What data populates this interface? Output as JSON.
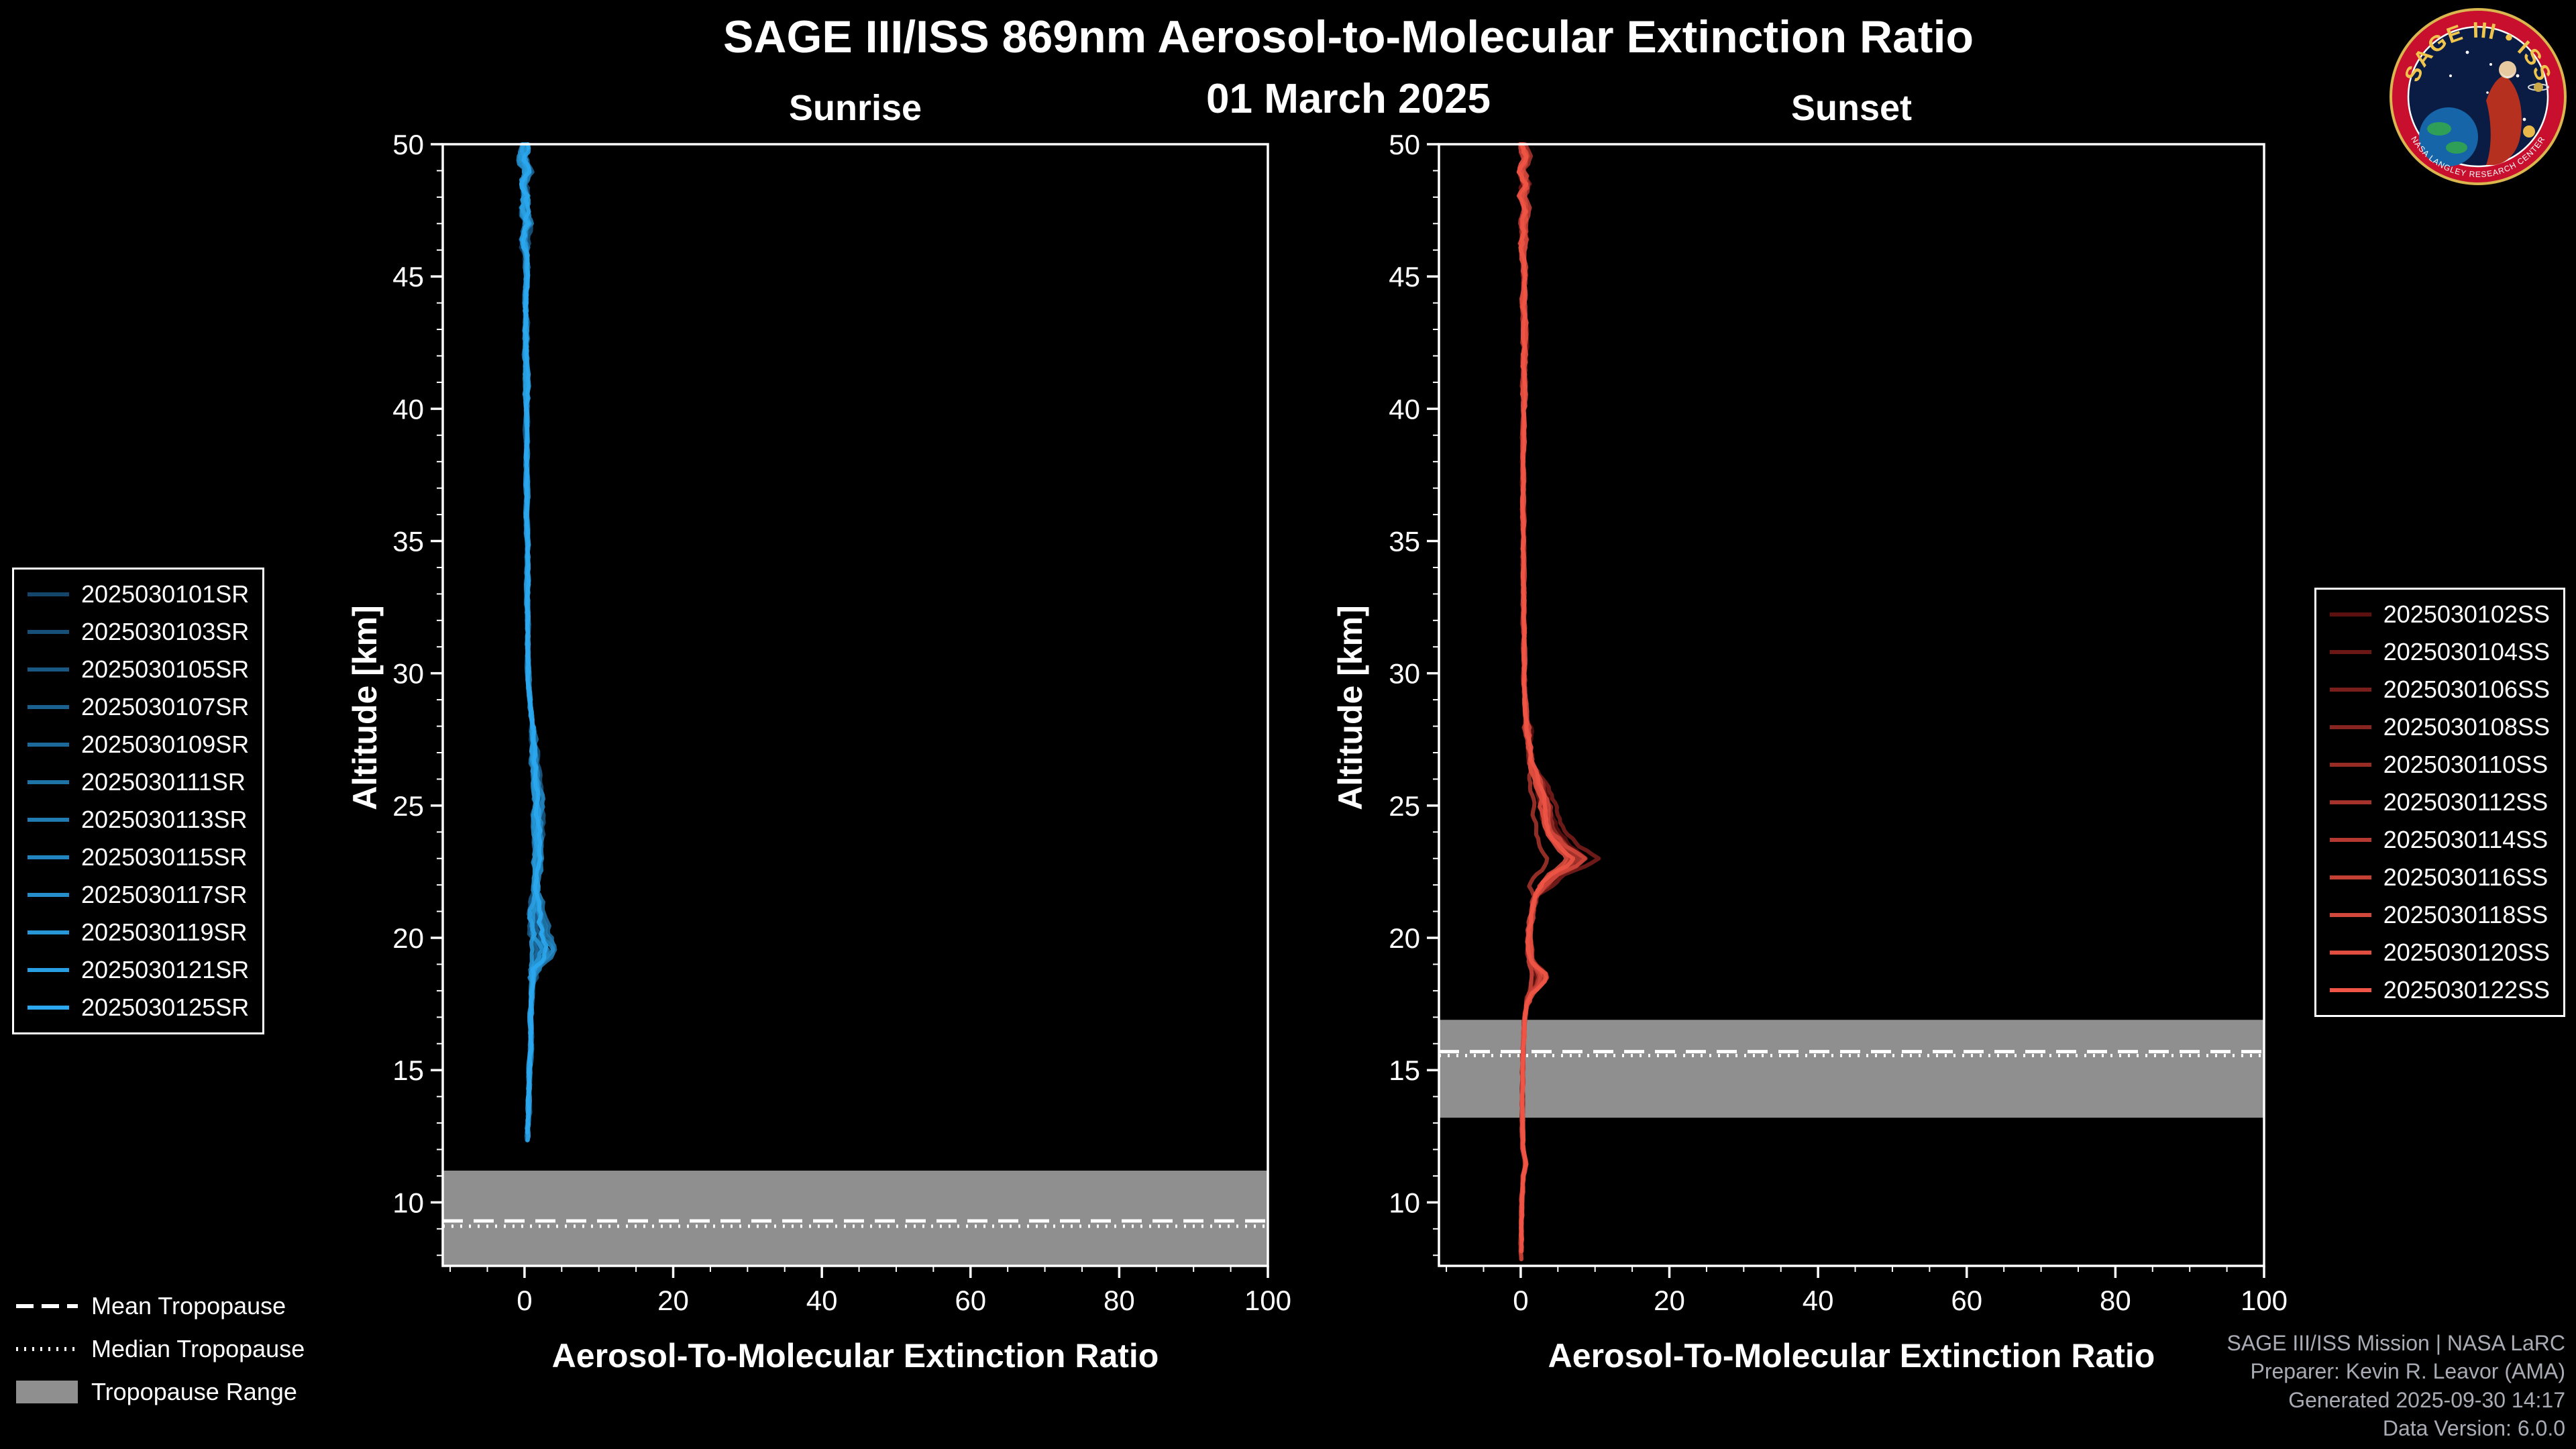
{
  "header": {
    "title": "SAGE III/ISS 869nm Aerosol-to-Molecular Extinction Ratio",
    "date": "01 March 2025"
  },
  "logo": {
    "title": "SAGE III • ISS",
    "subtitle": "NASA LANGLEY RESEARCH CENTER"
  },
  "tropopause_legend": {
    "mean": "Mean Tropopause",
    "median": "Median Tropopause",
    "range": "Tropopause Range"
  },
  "footer": {
    "lines": [
      "SAGE III/ISS Mission | NASA LaRC",
      "Preparer: Kevin R. Leavor (AMA)",
      "Generated 2025-09-30 14:17",
      "Data Version: 6.0.0"
    ]
  },
  "chart_data": [
    {
      "type": "line",
      "title": "Sunrise",
      "xlabel": "Aerosol-To-Molecular Extinction Ratio",
      "ylabel": "Altitude [km]",
      "xlim": [
        -11,
        100
      ],
      "ylim": [
        7.6,
        50
      ],
      "xticks": [
        0,
        20,
        40,
        60,
        80,
        100
      ],
      "yticks": [
        10,
        15,
        20,
        25,
        30,
        35,
        40,
        45,
        50
      ],
      "x_minor_step": 5,
      "y_minor_step": 1,
      "band_color": "#8f8f8f",
      "tropopause": {
        "mean": 9.3,
        "median": 9.1,
        "range": [
          7.6,
          11.2
        ]
      },
      "seed": 2025,
      "end_alt": [
        12.2,
        13.4
      ],
      "amp": [
        [
          46,
          1.5
        ],
        [
          40,
          0.7
        ],
        [
          28,
          0.45
        ],
        [
          21,
          0.9
        ],
        [
          18.5,
          1.3
        ],
        [
          -99,
          0.45
        ]
      ],
      "bulges": [
        {
          "range": [
            18.8,
            21.8
          ],
          "fmin": 0.5,
          "fmax": 2.0
        },
        {
          "range": [
            22.0,
            27.5
          ],
          "fmin": 0.7,
          "fmax": 1.3
        }
      ],
      "series": [
        {
          "name": "2025030101SR",
          "color": "#14466b"
        },
        {
          "name": "2025030103SR",
          "color": "#164f77"
        },
        {
          "name": "2025030105SR",
          "color": "#185883"
        },
        {
          "name": "2025030107SR",
          "color": "#1a618f"
        },
        {
          "name": "2025030109SR",
          "color": "#1c6a9b"
        },
        {
          "name": "2025030111SR",
          "color": "#1e73a7"
        },
        {
          "name": "2025030113SR",
          "color": "#217cb3"
        },
        {
          "name": "2025030115SR",
          "color": "#2385bf"
        },
        {
          "name": "2025030117SR",
          "color": "#258ecb"
        },
        {
          "name": "2025030119SR",
          "color": "#2797d7"
        },
        {
          "name": "2025030121SR",
          "color": "#299fe3"
        },
        {
          "name": "2025030125SR",
          "color": "#2ba8f0"
        }
      ],
      "base_profile": [
        [
          50,
          0.2
        ],
        [
          49.5,
          -0.3
        ],
        [
          49,
          0.5
        ],
        [
          48.5,
          -0.4
        ],
        [
          48,
          0.3
        ],
        [
          47.5,
          -0.2
        ],
        [
          47,
          0.4
        ],
        [
          46.5,
          0.0
        ],
        [
          46,
          0.2
        ],
        [
          45,
          0.3
        ],
        [
          44,
          0.1
        ],
        [
          43,
          0.3
        ],
        [
          42,
          0.2
        ],
        [
          41,
          0.3
        ],
        [
          40,
          0.25
        ],
        [
          39,
          0.3
        ],
        [
          38,
          0.3
        ],
        [
          37,
          0.3
        ],
        [
          36,
          0.3
        ],
        [
          35,
          0.35
        ],
        [
          34,
          0.4
        ],
        [
          33,
          0.4
        ],
        [
          32,
          0.45
        ],
        [
          31,
          0.45
        ],
        [
          30,
          0.5
        ],
        [
          29,
          0.7
        ],
        [
          28,
          1.0
        ],
        [
          27,
          1.4
        ],
        [
          26,
          1.7
        ],
        [
          25,
          1.9
        ],
        [
          24,
          2.0
        ],
        [
          23,
          1.9
        ],
        [
          22,
          1.6
        ],
        [
          21,
          1.2
        ],
        [
          20.5,
          1.4
        ],
        [
          20,
          1.8
        ],
        [
          19.5,
          2.3
        ],
        [
          19,
          1.7
        ],
        [
          18.5,
          1.2
        ],
        [
          18,
          1.0
        ],
        [
          17,
          0.8
        ],
        [
          16,
          0.9
        ],
        [
          15,
          0.7
        ],
        [
          14,
          0.6
        ],
        [
          13,
          0.5
        ],
        [
          12.5,
          0.4
        ],
        [
          12,
          0.35
        ]
      ]
    },
    {
      "type": "line",
      "title": "Sunset",
      "xlabel": "Aerosol-To-Molecular Extinction Ratio",
      "ylabel": "Altitude [km]",
      "xlim": [
        -11,
        100
      ],
      "ylim": [
        7.6,
        50
      ],
      "xticks": [
        0,
        20,
        40,
        60,
        80,
        100
      ],
      "yticks": [
        10,
        15,
        20,
        25,
        30,
        35,
        40,
        45,
        50
      ],
      "x_minor_step": 5,
      "y_minor_step": 1,
      "band_color": "#8f8f8f",
      "tropopause": {
        "mean": 15.7,
        "median": 15.55,
        "range": [
          13.2,
          16.9
        ]
      },
      "seed": 3025,
      "end_alt": [
        7.7,
        8.6
      ],
      "amp": [
        [
          46,
          1.3
        ],
        [
          40,
          0.7
        ],
        [
          28,
          0.45
        ],
        [
          21,
          1.0
        ],
        [
          17.5,
          0.8
        ],
        [
          -99,
          0.3
        ]
      ],
      "bulges": [
        {
          "range": [
            21.5,
            26.5
          ],
          "fmin": 0.55,
          "fmax": 1.8
        },
        {
          "range": [
            17.8,
            19.2
          ],
          "fmin": 0.5,
          "fmax": 2.2
        }
      ],
      "series": [
        {
          "name": "2025030102SS",
          "color": "#5c1010"
        },
        {
          "name": "2025030104SS",
          "color": "#6b1715"
        },
        {
          "name": "2025030106SS",
          "color": "#7a1e1b"
        },
        {
          "name": "2025030108SS",
          "color": "#882520"
        },
        {
          "name": "2025030110SS",
          "color": "#972c25"
        },
        {
          "name": "2025030112SS",
          "color": "#a6332b"
        },
        {
          "name": "2025030114SS",
          "color": "#b53930"
        },
        {
          "name": "2025030116SS",
          "color": "#c44035"
        },
        {
          "name": "2025030118SS",
          "color": "#d2473b"
        },
        {
          "name": "2025030120SS",
          "color": "#e14e40"
        },
        {
          "name": "2025030122SS",
          "color": "#f05545"
        }
      ],
      "base_profile": [
        [
          50,
          0.2
        ],
        [
          49.5,
          0.7
        ],
        [
          49,
          0.1
        ],
        [
          48.5,
          0.8
        ],
        [
          48,
          0.2
        ],
        [
          47.5,
          0.9
        ],
        [
          47,
          0.3
        ],
        [
          46.5,
          0.6
        ],
        [
          46,
          0.3
        ],
        [
          45,
          0.5
        ],
        [
          44,
          0.35
        ],
        [
          43,
          0.55
        ],
        [
          42,
          0.45
        ],
        [
          41,
          0.4
        ],
        [
          40,
          0.4
        ],
        [
          39,
          0.35
        ],
        [
          38,
          0.3
        ],
        [
          37,
          0.3
        ],
        [
          36,
          0.3
        ],
        [
          35,
          0.35
        ],
        [
          34,
          0.4
        ],
        [
          33,
          0.4
        ],
        [
          32,
          0.4
        ],
        [
          31,
          0.45
        ],
        [
          30,
          0.5
        ],
        [
          29,
          0.6
        ],
        [
          28,
          0.8
        ],
        [
          27,
          1.2
        ],
        [
          26,
          1.8
        ],
        [
          25.5,
          2.3
        ],
        [
          25,
          2.7
        ],
        [
          24.5,
          2.9
        ],
        [
          24,
          3.3
        ],
        [
          23.5,
          4.4
        ],
        [
          23,
          6.2
        ],
        [
          22.7,
          5.2
        ],
        [
          22.4,
          3.6
        ],
        [
          22,
          2.5
        ],
        [
          21.5,
          1.9
        ],
        [
          21,
          1.5
        ],
        [
          20.5,
          1.3
        ],
        [
          20,
          1.1
        ],
        [
          19.5,
          1.2
        ],
        [
          19,
          1.3
        ],
        [
          18.5,
          1.7
        ],
        [
          18,
          1.3
        ],
        [
          17.5,
          0.8
        ],
        [
          17,
          0.55
        ],
        [
          16,
          0.35
        ],
        [
          15,
          0.28
        ],
        [
          14,
          0.22
        ],
        [
          13,
          0.22
        ],
        [
          12,
          0.3
        ],
        [
          11.5,
          0.7
        ],
        [
          11,
          0.35
        ],
        [
          10,
          0.15
        ],
        [
          9,
          0.08
        ],
        [
          8,
          0.05
        ]
      ]
    }
  ]
}
